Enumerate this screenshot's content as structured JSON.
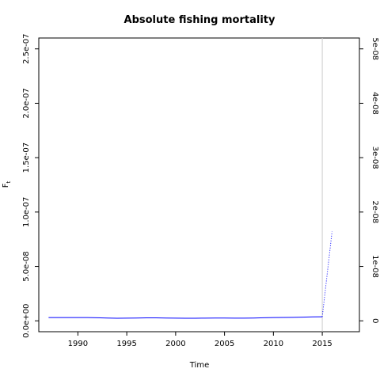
{
  "chart_data": {
    "type": "line",
    "title": "Absolute fishing mortality",
    "xlabel": "Time",
    "ylabel": "F",
    "ylabel_subscript": "t",
    "xlim": [
      1986,
      2018.8
    ],
    "ylim": [
      -1e-08,
      2.6e-07
    ],
    "xticks": [
      1990,
      1995,
      2000,
      2005,
      2010,
      2015
    ],
    "xtick_labels": [
      "1990",
      "1995",
      "2000",
      "2005",
      "2010",
      "2015"
    ],
    "yticks": [
      0,
      5e-08,
      1e-07,
      1.5e-07,
      2e-07,
      2.5e-07
    ],
    "ytick_labels": [
      "0.0e+00",
      "5.0e-08",
      "1.0e-07",
      "1.5e-07",
      "2.0e-07",
      "2.5e-07"
    ],
    "right_axis": {
      "ylim": [
        -2e-09,
        5.2e-08
      ],
      "yticks": [
        0,
        1e-08,
        2e-08,
        3e-08,
        4e-08,
        5e-08
      ],
      "ytick_labels": [
        "0",
        "1e-08",
        "2e-08",
        "3e-08",
        "4e-08",
        "5e-08"
      ]
    },
    "vline": {
      "x": 2015,
      "color": "#cccccc"
    },
    "series": [
      {
        "style": "solid",
        "color": "#0000ff",
        "x": [
          1987,
          1988,
          1989,
          1990,
          1991,
          1992,
          1993,
          1994,
          1995,
          1996,
          1997,
          1998,
          1999,
          2000,
          2001,
          2002,
          2003,
          2004,
          2005,
          2006,
          2007,
          2008,
          2009,
          2010,
          2011,
          2012,
          2013,
          2014,
          2015
        ],
        "y": [
          3e-09,
          3e-09,
          3e-09,
          3e-09,
          3e-09,
          2.8e-09,
          2.6e-09,
          2.4e-09,
          2.5e-09,
          2.6e-09,
          2.7e-09,
          2.7e-09,
          2.6e-09,
          2.5e-09,
          2.4e-09,
          2.4e-09,
          2.5e-09,
          2.6e-09,
          2.6e-09,
          2.5e-09,
          2.5e-09,
          2.6e-09,
          2.8e-09,
          3e-09,
          3.1e-09,
          3.2e-09,
          3.4e-09,
          3.6e-09,
          3.7e-09
        ]
      },
      {
        "style": "dotted",
        "color": "#0000ff",
        "x": [
          2015,
          2016
        ],
        "y": [
          3.7e-09,
          8.2e-08
        ]
      }
    ]
  }
}
